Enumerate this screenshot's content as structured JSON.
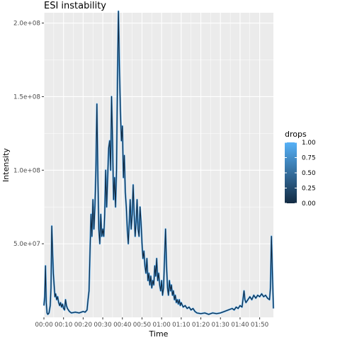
{
  "chart_data": {
    "type": "line",
    "title": "ESI instability",
    "xlabel": "Time",
    "ylabel": "Intensity",
    "x_tick_labels": [
      "00:00",
      "00:10",
      "00:20",
      "00:30",
      "00:40",
      "00:50",
      "01:00",
      "01:10",
      "01:20",
      "01:30",
      "01:40",
      "01:50"
    ],
    "x_tick_minutes": [
      0,
      10,
      20,
      30,
      40,
      50,
      60,
      70,
      80,
      90,
      100,
      110
    ],
    "x_range_minutes": [
      0,
      117
    ],
    "y_tick_labels": [
      "5.0e+07",
      "1.0e+08",
      "1.5e+08",
      "2.0e+08"
    ],
    "y_tick_values": [
      50000000,
      100000000,
      150000000,
      200000000
    ],
    "ylim": [
      0,
      207000000
    ],
    "color_scale": {
      "name": "drops",
      "min": 0,
      "max": 1,
      "low_color": "#132B43",
      "high_color": "#56B1F7",
      "tick_labels": [
        "1.00",
        "0.75",
        "0.50",
        "0.25",
        "0.00"
      ],
      "tick_values": [
        1.0,
        0.75,
        0.5,
        0.25,
        0.0
      ]
    },
    "legend_placement": "right",
    "grid": true,
    "panel_background": "#EBEBEB",
    "series": [
      {
        "points": [
          [
            0.0,
            8000000
          ],
          [
            0.4,
            14000000
          ],
          [
            0.8,
            35000000
          ],
          [
            1.2,
            10000000
          ],
          [
            1.6,
            3000000
          ],
          [
            2.0,
            2000000
          ],
          [
            2.6,
            3000000
          ],
          [
            3.2,
            8000000
          ],
          [
            3.6,
            20000000
          ],
          [
            4.0,
            62000000
          ],
          [
            4.4,
            45000000
          ],
          [
            4.8,
            30000000
          ],
          [
            5.2,
            22000000
          ],
          [
            5.6,
            14000000
          ],
          [
            6.0,
            16000000
          ],
          [
            6.5,
            12000000
          ],
          [
            7.0,
            14000000
          ],
          [
            7.5,
            10000000
          ],
          [
            8.0,
            8000000
          ],
          [
            8.5,
            10000000
          ],
          [
            9.0,
            7000000
          ],
          [
            9.5,
            9000000
          ],
          [
            10.0,
            6000000
          ],
          [
            10.5,
            5000000
          ],
          [
            11.0,
            12000000
          ],
          [
            11.5,
            8000000
          ],
          [
            12.0,
            6000000
          ],
          [
            13.0,
            4000000
          ],
          [
            14.0,
            3000000
          ],
          [
            16.0,
            3500000
          ],
          [
            18.0,
            3000000
          ],
          [
            20.0,
            4000000
          ],
          [
            21.0,
            3500000
          ],
          [
            22.0,
            5000000
          ],
          [
            22.5,
            12000000
          ],
          [
            23.0,
            18000000
          ],
          [
            23.5,
            45000000
          ],
          [
            24.0,
            70000000
          ],
          [
            24.5,
            55000000
          ],
          [
            25.0,
            80000000
          ],
          [
            25.5,
            60000000
          ],
          [
            26.0,
            75000000
          ],
          [
            26.5,
            100000000
          ],
          [
            27.0,
            145000000
          ],
          [
            27.5,
            95000000
          ],
          [
            28.0,
            60000000
          ],
          [
            28.5,
            50000000
          ],
          [
            29.0,
            70000000
          ],
          [
            29.5,
            55000000
          ],
          [
            30.0,
            60000000
          ],
          [
            30.5,
            55000000
          ],
          [
            31.0,
            70000000
          ],
          [
            31.5,
            100000000
          ],
          [
            32.0,
            75000000
          ],
          [
            32.5,
            95000000
          ],
          [
            33.0,
            115000000
          ],
          [
            33.5,
            120000000
          ],
          [
            34.0,
            100000000
          ],
          [
            34.5,
            150000000
          ],
          [
            35.0,
            120000000
          ],
          [
            35.5,
            80000000
          ],
          [
            36.0,
            95000000
          ],
          [
            36.5,
            75000000
          ],
          [
            37.0,
            100000000
          ],
          [
            37.5,
            160000000
          ],
          [
            38.0,
            208000000
          ],
          [
            38.5,
            170000000
          ],
          [
            39.0,
            140000000
          ],
          [
            39.5,
            120000000
          ],
          [
            40.0,
            130000000
          ],
          [
            40.5,
            95000000
          ],
          [
            41.0,
            110000000
          ],
          [
            41.5,
            85000000
          ],
          [
            42.0,
            75000000
          ],
          [
            42.5,
            60000000
          ],
          [
            43.0,
            50000000
          ],
          [
            43.5,
            65000000
          ],
          [
            44.0,
            80000000
          ],
          [
            44.5,
            60000000
          ],
          [
            45.0,
            70000000
          ],
          [
            45.5,
            90000000
          ],
          [
            46.0,
            70000000
          ],
          [
            46.5,
            55000000
          ],
          [
            47.0,
            65000000
          ],
          [
            47.5,
            80000000
          ],
          [
            48.0,
            60000000
          ],
          [
            48.5,
            55000000
          ],
          [
            49.0,
            75000000
          ],
          [
            49.5,
            65000000
          ],
          [
            50.0,
            50000000
          ],
          [
            50.5,
            40000000
          ],
          [
            51.0,
            45000000
          ],
          [
            51.5,
            35000000
          ],
          [
            52.0,
            30000000
          ],
          [
            52.5,
            40000000
          ],
          [
            53.0,
            25000000
          ],
          [
            53.5,
            30000000
          ],
          [
            54.0,
            22000000
          ],
          [
            54.5,
            28000000
          ],
          [
            55.0,
            20000000
          ],
          [
            55.5,
            25000000
          ],
          [
            56.0,
            22000000
          ],
          [
            56.5,
            35000000
          ],
          [
            57.0,
            28000000
          ],
          [
            57.5,
            40000000
          ],
          [
            58.0,
            25000000
          ],
          [
            58.5,
            30000000
          ],
          [
            59.0,
            22000000
          ],
          [
            59.5,
            18000000
          ],
          [
            60.0,
            25000000
          ],
          [
            60.5,
            15000000
          ],
          [
            61.0,
            20000000
          ],
          [
            61.5,
            40000000
          ],
          [
            62.0,
            60000000
          ],
          [
            62.5,
            35000000
          ],
          [
            63.0,
            20000000
          ],
          [
            63.5,
            15000000
          ],
          [
            64.0,
            25000000
          ],
          [
            64.5,
            18000000
          ],
          [
            65.0,
            22000000
          ],
          [
            65.5,
            15000000
          ],
          [
            66.0,
            18000000
          ],
          [
            66.5,
            12000000
          ],
          [
            67.0,
            15000000
          ],
          [
            67.5,
            10000000
          ],
          [
            68.0,
            12000000
          ],
          [
            68.5,
            9000000
          ],
          [
            69.0,
            12000000
          ],
          [
            69.5,
            8000000
          ],
          [
            70.0,
            10000000
          ],
          [
            71.0,
            7000000
          ],
          [
            72.0,
            8000000
          ],
          [
            73.0,
            6000000
          ],
          [
            74.0,
            7000000
          ],
          [
            75.0,
            5000000
          ],
          [
            76.0,
            6000000
          ],
          [
            77.0,
            4000000
          ],
          [
            78.0,
            3000000
          ],
          [
            80.0,
            2500000
          ],
          [
            82.0,
            3000000
          ],
          [
            84.0,
            2000000
          ],
          [
            86.0,
            3000000
          ],
          [
            88.0,
            2500000
          ],
          [
            90.0,
            3000000
          ],
          [
            92.0,
            4000000
          ],
          [
            94.0,
            5000000
          ],
          [
            96.0,
            6000000
          ],
          [
            97.0,
            5000000
          ],
          [
            98.0,
            7000000
          ],
          [
            99.0,
            6000000
          ],
          [
            100.0,
            8000000
          ],
          [
            101.0,
            7000000
          ],
          [
            102.0,
            18000000
          ],
          [
            102.5,
            12000000
          ],
          [
            103.0,
            10000000
          ],
          [
            104.0,
            12000000
          ],
          [
            105.0,
            14000000
          ],
          [
            106.0,
            12000000
          ],
          [
            107.0,
            15000000
          ],
          [
            108.0,
            13000000
          ],
          [
            109.0,
            15000000
          ],
          [
            110.0,
            14000000
          ],
          [
            111.0,
            16000000
          ],
          [
            112.0,
            14000000
          ],
          [
            113.0,
            15000000
          ],
          [
            114.0,
            13000000
          ],
          [
            115.0,
            12000000
          ],
          [
            115.5,
            20000000
          ],
          [
            116.0,
            55000000
          ],
          [
            116.5,
            30000000
          ],
          [
            117.0,
            6000000
          ]
        ]
      }
    ]
  }
}
